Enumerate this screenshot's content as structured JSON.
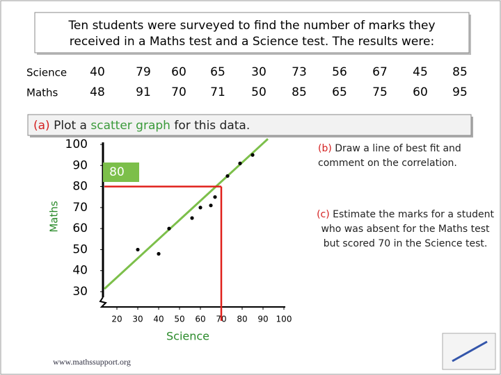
{
  "header": {
    "lines": [
      "Ten students were surveyed to find the number of marks they",
      "received in a Maths test and a Science test. The results were:"
    ]
  },
  "table": {
    "row_labels": [
      "Science",
      "Maths"
    ]
  },
  "questions": {
    "a": {
      "label": "(a)",
      "parts": [
        "Plot a",
        "scatter graph",
        "for this data."
      ]
    },
    "b": {
      "label": "(b)",
      "text": "Draw a line of best fit and comment on the correlation."
    },
    "c": {
      "label": "(c)",
      "text": "Estimate the marks for a student who was absent for the Maths test but scored 70 in the Science test."
    }
  },
  "footer": "www.mathssupport.org",
  "chart_data": {
    "type": "scatter",
    "xlabel": "Science",
    "ylabel": "Maths",
    "x": [
      40,
      79,
      60,
      65,
      30,
      73,
      56,
      67,
      45,
      85
    ],
    "series": [
      {
        "name": "Maths",
        "color": "#000000",
        "values": [
          48,
          91,
          70,
          71,
          50,
          85,
          65,
          75,
          60,
          95
        ]
      }
    ],
    "xlim": [
      14,
      100
    ],
    "ylim": [
      30,
      100
    ],
    "xticks": [
      20,
      30,
      40,
      50,
      60,
      70,
      80,
      90,
      100
    ],
    "yticks": [
      30,
      40,
      50,
      60,
      70,
      80,
      90,
      100
    ],
    "grid": false,
    "best_fit_color": "#7cbf4a",
    "estimate": {
      "x": 70,
      "y": 80,
      "color": "#e0201b"
    }
  }
}
